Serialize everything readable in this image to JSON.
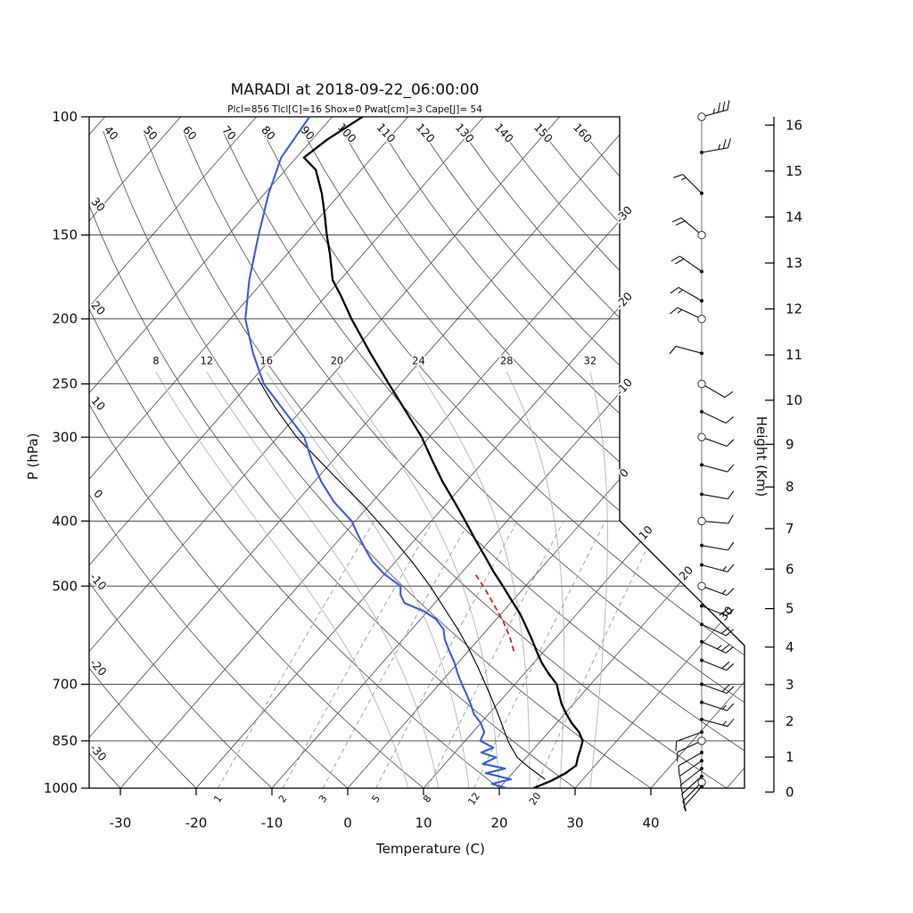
{
  "title": "MARADI at 2018-09-22_06:00:00",
  "subtitle": "Plcl=856 Tlcl[C]=16 Shox=0 Pwat[cm]=3 Cape[J]= 54",
  "subtitle_color": "#b22222",
  "axes": {
    "left_label": "P (hPa)",
    "bottom_label": "Temperature (C)",
    "right_label": "Height (Km)",
    "pressure_ticks": [
      100,
      150,
      200,
      250,
      300,
      400,
      500,
      700,
      850,
      1000
    ],
    "temp_ticks": [
      -30,
      -20,
      -10,
      0,
      10,
      20,
      30,
      40
    ],
    "height_ticks_km": [
      0,
      1,
      2,
      3,
      4,
      5,
      6,
      7,
      8,
      9,
      10,
      11,
      12,
      13,
      14,
      15,
      16
    ]
  },
  "chart_data": {
    "type": "skewt_log_p",
    "station": "MARADI",
    "datetime": "2018-09-22_06:00:00",
    "indices": {
      "Plcl": 856,
      "Tlcl_C": 16,
      "Shox": 0,
      "Pwat_cm": 3,
      "Cape_J": 54
    },
    "pressure_range_hpa": [
      100,
      1000
    ],
    "temp_axis_range_c": [
      -30,
      40
    ],
    "isotherm_labels_right_c": [
      0,
      -10,
      -20,
      -30
    ],
    "isotherm_labels_diagonal_c": [
      10,
      20,
      30
    ],
    "dry_adiabat_labels_c": [
      -30,
      -20,
      -10,
      0,
      10,
      20,
      30,
      40,
      50,
      60,
      70,
      80,
      90,
      100,
      110,
      120,
      130,
      140,
      150,
      160
    ],
    "moist_adiabats_c": [
      8,
      12,
      16,
      20,
      24,
      28,
      32
    ],
    "mixing_ratio_lines_g_kg": [
      1,
      2,
      3,
      5,
      8,
      12,
      20
    ],
    "temperature_profile_p_t": [
      [
        1000,
        24.5
      ],
      [
        975,
        26.0
      ],
      [
        950,
        27.0
      ],
      [
        925,
        27.5
      ],
      [
        900,
        26.8
      ],
      [
        875,
        26.2
      ],
      [
        850,
        25.5
      ],
      [
        825,
        24.0
      ],
      [
        800,
        22.0
      ],
      [
        775,
        20.2
      ],
      [
        750,
        18.5
      ],
      [
        725,
        17.0
      ],
      [
        700,
        15.5
      ],
      [
        675,
        13.2
      ],
      [
        650,
        11.0
      ],
      [
        625,
        9.0
      ],
      [
        600,
        7.0
      ],
      [
        575,
        4.8
      ],
      [
        550,
        2.5
      ],
      [
        525,
        -0.2
      ],
      [
        500,
        -3.0
      ],
      [
        475,
        -6.0
      ],
      [
        450,
        -9.0
      ],
      [
        425,
        -12.2
      ],
      [
        400,
        -15.5
      ],
      [
        375,
        -19.1
      ],
      [
        350,
        -23.0
      ],
      [
        325,
        -26.9
      ],
      [
        300,
        -31.0
      ],
      [
        275,
        -36.0
      ],
      [
        250,
        -41.5
      ],
      [
        225,
        -47.5
      ],
      [
        200,
        -54.0
      ],
      [
        185,
        -58.0
      ],
      [
        175,
        -61.0
      ],
      [
        160,
        -64.4
      ],
      [
        150,
        -67.0
      ],
      [
        140,
        -69.6
      ],
      [
        130,
        -72.5
      ],
      [
        120,
        -76.0
      ],
      [
        115,
        -79.0
      ],
      [
        108,
        -78.0
      ],
      [
        100,
        -76.0
      ]
    ],
    "dewpoint_profile_p_t": [
      [
        1000,
        21.0
      ],
      [
        985,
        18.5
      ],
      [
        970,
        20.5
      ],
      [
        950,
        16.5
      ],
      [
        935,
        18.5
      ],
      [
        920,
        15.0
      ],
      [
        900,
        16.0
      ],
      [
        885,
        13.5
      ],
      [
        870,
        14.5
      ],
      [
        850,
        12.0
      ],
      [
        825,
        11.5
      ],
      [
        800,
        10.0
      ],
      [
        775,
        8.0
      ],
      [
        750,
        6.5
      ],
      [
        725,
        4.8
      ],
      [
        700,
        3.0
      ],
      [
        675,
        1.2
      ],
      [
        650,
        -0.5
      ],
      [
        625,
        -2.5
      ],
      [
        600,
        -4.5
      ],
      [
        580,
        -5.8
      ],
      [
        560,
        -8.0
      ],
      [
        545,
        -10.5
      ],
      [
        530,
        -14.0
      ],
      [
        515,
        -15.5
      ],
      [
        500,
        -16.5
      ],
      [
        480,
        -20.0
      ],
      [
        460,
        -23.0
      ],
      [
        440,
        -25.5
      ],
      [
        420,
        -28.0
      ],
      [
        400,
        -30.5
      ],
      [
        375,
        -35.0
      ],
      [
        350,
        -39.0
      ],
      [
        325,
        -42.8
      ],
      [
        300,
        -46.5
      ],
      [
        275,
        -52.0
      ],
      [
        250,
        -58.0
      ],
      [
        225,
        -63.0
      ],
      [
        200,
        -68.0
      ],
      [
        175,
        -72.0
      ],
      [
        150,
        -76.0
      ],
      [
        130,
        -79.5
      ],
      [
        115,
        -82.0
      ],
      [
        100,
        -83.0
      ]
    ],
    "parcel_trace_p_t": [
      [
        970,
        25.0
      ],
      [
        930,
        21.4
      ],
      [
        900,
        18.8
      ],
      [
        856,
        16.0
      ],
      [
        820,
        13.9
      ],
      [
        780,
        11.5
      ],
      [
        740,
        8.9
      ],
      [
        700,
        6.1
      ],
      [
        660,
        3.1
      ],
      [
        620,
        -0.2
      ],
      [
        580,
        -3.9
      ],
      [
        540,
        -8.1
      ],
      [
        500,
        -12.6
      ],
      [
        460,
        -17.8
      ],
      [
        420,
        -23.8
      ],
      [
        380,
        -30.6
      ],
      [
        340,
        -38.6
      ],
      [
        300,
        -47.5
      ],
      [
        270,
        -54.0
      ],
      [
        245,
        -59.5
      ]
    ],
    "cape_segment_p_t": [
      [
        625,
        6.0
      ],
      [
        595,
        3.8
      ],
      [
        565,
        1.2
      ],
      [
        535,
        -1.8
      ],
      [
        505,
        -5.0
      ],
      [
        480,
        -8.0
      ]
    ],
    "winds_p_dir_spd": [
      {
        "p": 100,
        "dir": 75,
        "spd": 35,
        "m": "circle"
      },
      {
        "p": 113,
        "dir": 80,
        "spd": 25,
        "m": "dot"
      },
      {
        "p": 130,
        "dir": 315,
        "spd": 15,
        "m": "dot"
      },
      {
        "p": 150,
        "dir": 310,
        "spd": 20,
        "m": "circle"
      },
      {
        "p": 170,
        "dir": 305,
        "spd": 20,
        "m": "dot"
      },
      {
        "p": 188,
        "dir": 300,
        "spd": 15,
        "m": "dot"
      },
      {
        "p": 200,
        "dir": 295,
        "spd": 15,
        "m": "circle"
      },
      {
        "p": 225,
        "dir": 285,
        "spd": 10,
        "m": "dot"
      },
      {
        "p": 250,
        "dir": 120,
        "spd": 10,
        "m": "circle"
      },
      {
        "p": 275,
        "dir": 115,
        "spd": 10,
        "m": "dot"
      },
      {
        "p": 300,
        "dir": 110,
        "spd": 10,
        "m": "circle"
      },
      {
        "p": 330,
        "dir": 105,
        "spd": 10,
        "m": "dot"
      },
      {
        "p": 365,
        "dir": 100,
        "spd": 10,
        "m": "dot"
      },
      {
        "p": 400,
        "dir": 95,
        "spd": 10,
        "m": "circle"
      },
      {
        "p": 435,
        "dir": 100,
        "spd": 10,
        "m": "dot"
      },
      {
        "p": 465,
        "dir": 105,
        "spd": 15,
        "m": "dot"
      },
      {
        "p": 500,
        "dir": 110,
        "spd": 15,
        "m": "circle"
      },
      {
        "p": 535,
        "dir": 112,
        "spd": 20,
        "m": "dot"
      },
      {
        "p": 570,
        "dir": 115,
        "spd": 20,
        "m": "dot"
      },
      {
        "p": 605,
        "dir": 115,
        "spd": 25,
        "m": "dot"
      },
      {
        "p": 645,
        "dir": 112,
        "spd": 20,
        "m": "dot"
      },
      {
        "p": 700,
        "dir": 110,
        "spd": 20,
        "m": "dot"
      },
      {
        "p": 745,
        "dir": 108,
        "spd": 15,
        "m": "dot"
      },
      {
        "p": 790,
        "dir": 105,
        "spd": 15,
        "m": "dot"
      },
      {
        "p": 825,
        "dir": 250,
        "spd": 10,
        "m": "dot"
      },
      {
        "p": 850,
        "dir": 245,
        "spd": 10,
        "m": "circle"
      },
      {
        "p": 885,
        "dir": 240,
        "spd": 10,
        "m": "dot"
      },
      {
        "p": 910,
        "dir": 235,
        "spd": 10,
        "m": "dot"
      },
      {
        "p": 935,
        "dir": 232,
        "spd": 10,
        "m": "dot"
      },
      {
        "p": 960,
        "dir": 228,
        "spd": 10,
        "m": "dot"
      },
      {
        "p": 980,
        "dir": 225,
        "spd": 10,
        "m": "circle"
      },
      {
        "p": 995,
        "dir": 222,
        "spd": 5,
        "m": "dot"
      }
    ],
    "series_colors": {
      "temperature": "#000000",
      "dewpoint": "#3a5fcd",
      "parcel": "#000000",
      "cape_segment": "#cc2222"
    }
  }
}
